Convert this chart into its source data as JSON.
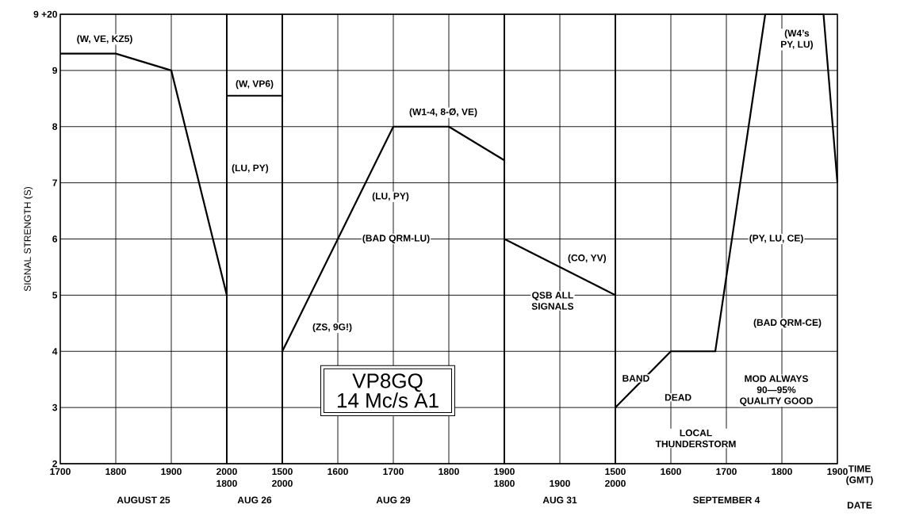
{
  "chart_data": [
    {
      "type": "line",
      "xlabel": "AUGUST 25",
      "ylabel": "SIGNAL STRENGTH (S)",
      "xlim": [
        1700,
        2000
      ],
      "ylim": [
        2,
        10
      ],
      "xticks": [
        1700,
        1800,
        1900,
        2000
      ],
      "yticks": [
        2,
        3,
        4,
        5,
        6,
        7,
        8,
        9,
        {
          "value": 10,
          "label": "9 +20"
        }
      ],
      "grid": true,
      "series": [
        {
          "color": "#000000",
          "x": [
            1700,
            1800,
            1900,
            2000
          ],
          "values": [
            9.3,
            9.3,
            9.0,
            5.0
          ]
        }
      ],
      "annotations": [
        "(W, VE, KZ5)",
        "(LU, PY)"
      ]
    },
    {
      "type": "line",
      "xlabel": "AUG 26",
      "xlim": [
        1800,
        2000
      ],
      "ylim": [
        2,
        10
      ],
      "xticks": [
        1800,
        2000
      ],
      "yticks": [
        2,
        3,
        4,
        5,
        6,
        7,
        8,
        9,
        10
      ],
      "grid": true,
      "tick_labels": "x",
      "series": [
        {
          "color": "#000000",
          "x": [
            1800,
            2000
          ],
          "values": [
            8.55,
            8.55
          ]
        }
      ],
      "annotations": [
        "(W, VP6)"
      ]
    },
    {
      "type": "line",
      "title": "VP8GQ",
      "subtitle": "14 Mc/s A1",
      "xlabel": "AUG 29",
      "xlim": [
        1500,
        1900
      ],
      "ylim": [
        2,
        10
      ],
      "xticks": [
        1500,
        1600,
        1700,
        1800,
        1900
      ],
      "yticks": [
        2,
        3,
        4,
        5,
        6,
        7,
        8,
        9,
        10
      ],
      "grid": true,
      "tick_labels": "x",
      "series": [
        {
          "color": "#000000",
          "x": [
            1500,
            1700,
            1800,
            1900
          ],
          "values": [
            4,
            8,
            8,
            7.4
          ]
        }
      ],
      "annotations": [
        "(W1-4, 8-Ø, VE)",
        "(LU, PY)",
        "(BAD QRM-LU)",
        "(ZS, 9G!)"
      ]
    },
    {
      "type": "line",
      "xlabel": "AUG 31",
      "xlim": [
        1800,
        2000
      ],
      "ylim": [
        2,
        10
      ],
      "xticks": [
        1800,
        1900,
        2000
      ],
      "yticks": [
        2,
        3,
        4,
        5,
        6,
        7,
        8,
        9,
        10
      ],
      "grid": true,
      "tick_labels": "x",
      "series": [
        {
          "color": "#000000",
          "x": [
            1800,
            2000
          ],
          "values": [
            6,
            5
          ]
        }
      ],
      "annotations": [
        "(CO, YV)",
        "QSB ALL\nSIGNALS"
      ]
    },
    {
      "type": "line",
      "xlabel": "SEPTEMBER 4",
      "xlim": [
        1500,
        1900
      ],
      "ylim": [
        2,
        10
      ],
      "xticks": [
        1500,
        1600,
        1700,
        1800,
        1900
      ],
      "yticks": [
        2,
        3,
        4,
        5,
        6,
        7,
        8,
        9,
        10
      ],
      "grid": true,
      "tick_labels": "x",
      "series": [
        {
          "color": "#000000",
          "x": [
            1500,
            1600,
            1680,
            1770,
            1875,
            1900
          ],
          "values": [
            3,
            4,
            4,
            10,
            10,
            7
          ]
        }
      ],
      "annotations": [
        "(W4’s\nPY, LU)",
        "(PY, LU, CE)",
        "(BAD QRM-CE)",
        "BAND",
        "DEAD",
        "LOCAL\nTHUNDERSTORM",
        "MOD ALWAYS\n90—95%\nQUALITY GOOD",
        "TIME\n(GMT)",
        "DATE"
      ]
    }
  ]
}
